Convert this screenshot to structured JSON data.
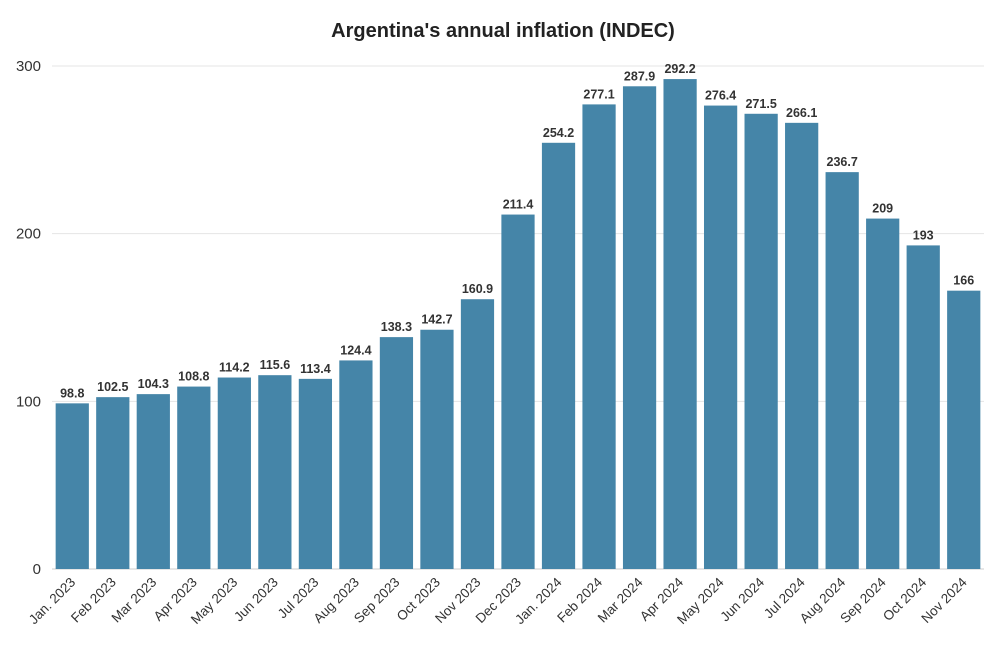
{
  "chart_data": {
    "type": "bar",
    "title": "Argentina's annual inflation (INDEC)",
    "xlabel": "",
    "ylabel": "",
    "ylim": [
      0,
      300
    ],
    "yticks": [
      0,
      100,
      200,
      300
    ],
    "grid": true,
    "bar_color": "#4585a8",
    "categories": [
      "Jan. 2023",
      "Feb 2023",
      "Mar 2023",
      "Apr 2023",
      "May 2023",
      "Jun 2023",
      "Jul 2023",
      "Aug 2023",
      "Sep 2023",
      "Oct 2023",
      "Nov 2023",
      "Dec 2023",
      "Jan. 2024",
      "Feb 2024",
      "Mar 2024",
      "Apr 2024",
      "May 2024",
      "Jun 2024",
      "Jul 2024",
      "Aug 2024",
      "Sep 2024",
      "Oct 2024",
      "Nov 2024"
    ],
    "values": [
      98.8,
      102.5,
      104.3,
      108.8,
      114.2,
      115.6,
      113.4,
      124.4,
      138.3,
      142.7,
      160.9,
      211.4,
      254.2,
      277.1,
      287.9,
      292.2,
      276.4,
      271.5,
      266.1,
      236.7,
      209,
      193,
      166
    ]
  }
}
